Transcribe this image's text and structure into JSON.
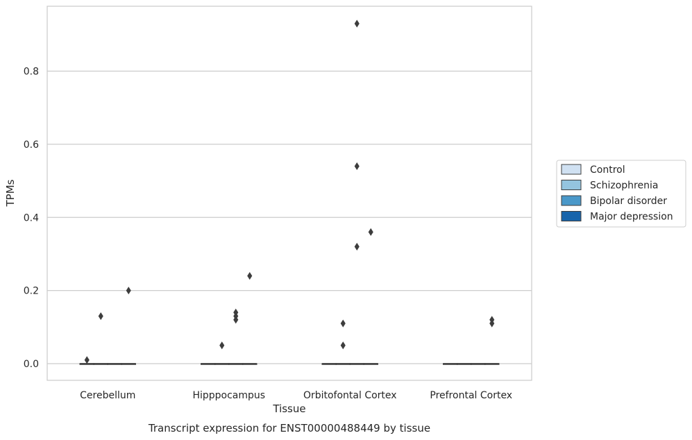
{
  "chart_data": {
    "type": "box",
    "title": "",
    "caption": "Transcript expression for ENST00000488449 by tissue",
    "xlabel": "Tissue",
    "ylabel": "TPMs",
    "ylim": [
      -0.045,
      0.98
    ],
    "yticks": [
      0.0,
      0.2,
      0.4,
      0.6,
      0.8
    ],
    "ytick_labels": [
      "0.0",
      "0.2",
      "0.4",
      "0.6",
      "0.8"
    ],
    "grid": "horizontal",
    "legend_position": "right",
    "categories": [
      "Cerebellum",
      "Hipppocampus",
      "Orbitofontal Cortex",
      "Prefrontal Cortex"
    ],
    "series": [
      {
        "name": "Control",
        "color": "#d0e1f2",
        "boxes": [
          {
            "q1": 0,
            "median": 0,
            "q3": 0
          },
          {
            "q1": 0,
            "median": 0,
            "q3": 0
          },
          {
            "q1": 0,
            "median": 0,
            "q3": 0
          },
          {
            "q1": 0,
            "median": 0,
            "q3": 0
          }
        ],
        "outliers": [
          [
            0.01
          ],
          [],
          [],
          []
        ]
      },
      {
        "name": "Schizophrenia",
        "color": "#94c4df",
        "boxes": [
          {
            "q1": 0,
            "median": 0,
            "q3": 0
          },
          {
            "q1": 0,
            "median": 0,
            "q3": 0
          },
          {
            "q1": 0,
            "median": 0,
            "q3": 0
          },
          {
            "q1": 0,
            "median": 0,
            "q3": 0
          }
        ],
        "outliers": [
          [
            0.13
          ],
          [
            0.05
          ],
          [
            0.11,
            0.05
          ],
          []
        ]
      },
      {
        "name": "Bipolar disorder",
        "color": "#4a98c9",
        "boxes": [
          {
            "q1": 0,
            "median": 0,
            "q3": 0
          },
          {
            "q1": 0,
            "median": 0,
            "q3": 0
          },
          {
            "q1": 0,
            "median": 0,
            "q3": 0
          },
          {
            "q1": 0,
            "median": 0,
            "q3": 0
          }
        ],
        "outliers": [
          [],
          [
            0.14,
            0.13,
            0.12
          ],
          [
            0.93,
            0.54,
            0.32
          ],
          []
        ]
      },
      {
        "name": "Major depression",
        "color": "#1764ab",
        "boxes": [
          {
            "q1": 0,
            "median": 0,
            "q3": 0
          },
          {
            "q1": 0,
            "median": 0,
            "q3": 0
          },
          {
            "q1": 0,
            "median": 0,
            "q3": 0
          },
          {
            "q1": 0,
            "median": 0,
            "q3": 0
          }
        ],
        "outliers": [
          [
            0.2
          ],
          [
            0.24
          ],
          [
            0.36
          ],
          [
            0.12,
            0.11
          ]
        ]
      }
    ]
  }
}
